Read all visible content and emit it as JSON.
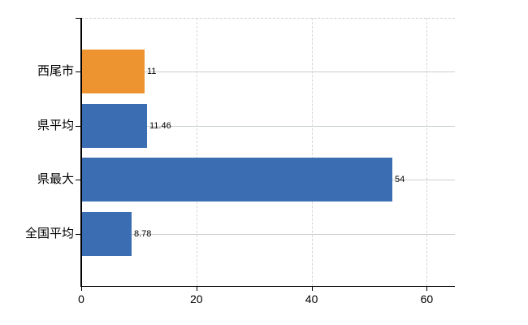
{
  "chart_data": {
    "type": "bar",
    "orientation": "horizontal",
    "title": "",
    "xlabel": "",
    "ylabel": "",
    "categories": [
      "西尾市",
      "県平均",
      "県最大",
      "全国平均"
    ],
    "values": [
      11,
      11.46,
      54,
      8.78
    ],
    "value_labels": [
      "11",
      "11.46",
      "54",
      "8.78"
    ],
    "bar_colors": [
      "#ed9431",
      "#3b6db3",
      "#3b6db3",
      "#3b6db3"
    ],
    "x_ticks": [
      0,
      20,
      40,
      60
    ],
    "x_tick_labels": [
      "0",
      "20",
      "40",
      "60"
    ],
    "xlim": [
      0,
      64.9
    ],
    "legend": "none",
    "grid": {
      "vertical": "dashed",
      "horizontal": "category-center-lines",
      "top_border": "dashed"
    },
    "colors": {
      "highlight_bar": "#ed9431",
      "default_bar": "#3b6db3",
      "axis": "#000000",
      "vertical_gridline": "#d7d7d7",
      "horizontal_gridline": "#c9d1c9",
      "background": "#ffffff",
      "text": "#000000"
    }
  }
}
